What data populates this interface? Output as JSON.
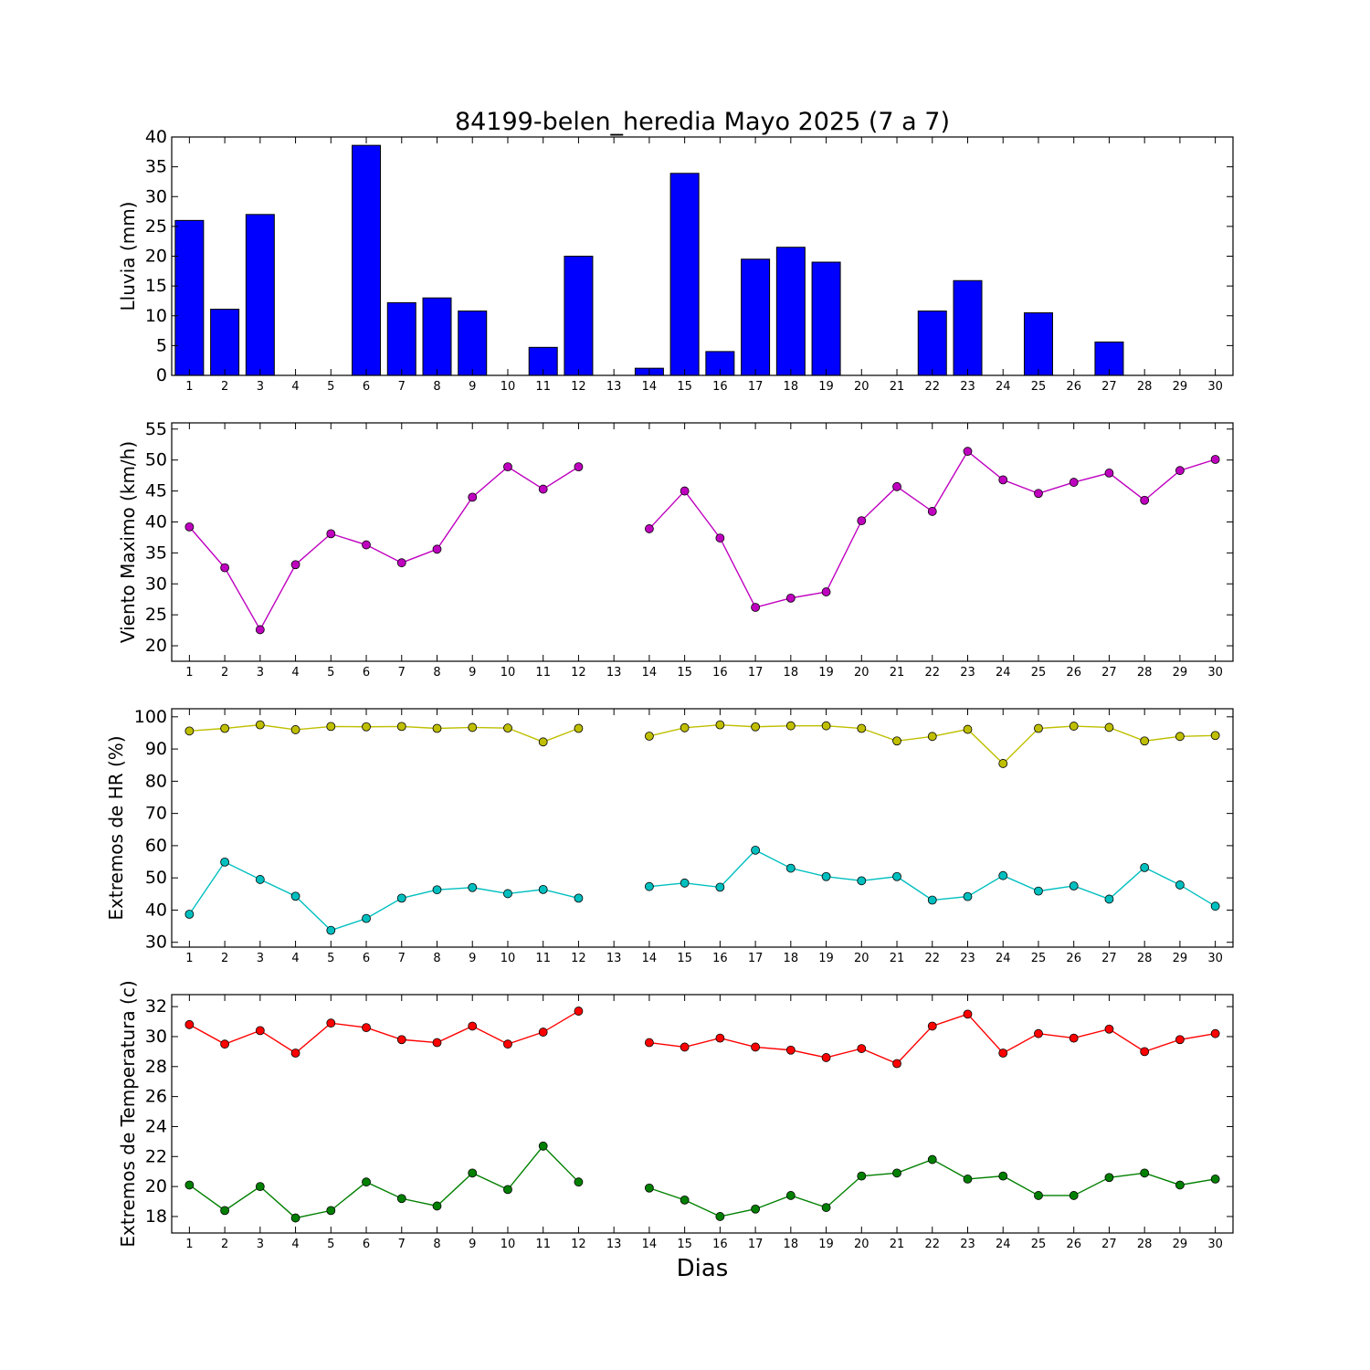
{
  "title": "84199-belen_heredia Mayo 2025  (7 a 7)",
  "xlabel": "Dias",
  "chart_data": [
    {
      "id": "lluvia",
      "type": "bar",
      "ylabel": "Lluvia (mm)",
      "ylim": [
        0,
        40
      ],
      "yticks": [
        0,
        5,
        10,
        15,
        20,
        25,
        30,
        35,
        40
      ],
      "xlim": [
        0.5,
        30.5
      ],
      "categories": [
        1,
        2,
        3,
        4,
        5,
        6,
        7,
        8,
        9,
        10,
        11,
        12,
        13,
        14,
        15,
        16,
        17,
        18,
        19,
        20,
        21,
        22,
        23,
        24,
        25,
        26,
        27,
        28,
        29,
        30
      ],
      "series": [
        {
          "color": "#0000ff",
          "values": [
            26.0,
            11.1,
            27.0,
            0,
            0,
            38.6,
            12.2,
            13.0,
            10.8,
            0,
            4.7,
            20.0,
            null,
            1.2,
            33.9,
            4.0,
            19.5,
            21.5,
            19.0,
            0,
            0,
            10.8,
            15.9,
            0,
            10.5,
            0,
            5.6,
            0,
            0,
            0
          ]
        }
      ]
    },
    {
      "id": "viento",
      "type": "line",
      "ylabel": "Viento Maximo (km/h)",
      "ylim": [
        17.5,
        56
      ],
      "yticks": [
        20,
        25,
        30,
        35,
        40,
        45,
        50,
        55
      ],
      "xlim": [
        0.5,
        30.5
      ],
      "categories": [
        1,
        2,
        3,
        4,
        5,
        6,
        7,
        8,
        9,
        10,
        11,
        12,
        13,
        14,
        15,
        16,
        17,
        18,
        19,
        20,
        21,
        22,
        23,
        24,
        25,
        26,
        27,
        28,
        29,
        30
      ],
      "series": [
        {
          "color": "#bf00bf",
          "values": [
            39.2,
            32.6,
            22.6,
            33.1,
            38.1,
            36.3,
            33.4,
            35.6,
            44.0,
            48.9,
            45.3,
            48.9,
            null,
            38.9,
            45.0,
            37.4,
            26.2,
            27.7,
            28.7,
            40.2,
            45.7,
            41.7,
            51.4,
            46.8,
            44.6,
            46.4,
            47.9,
            43.5,
            48.3,
            50.1
          ]
        }
      ]
    },
    {
      "id": "hr",
      "type": "line",
      "ylabel": "Extremos de HR (%)",
      "ylim": [
        28.5,
        102.5
      ],
      "yticks": [
        30,
        40,
        50,
        60,
        70,
        80,
        90,
        100
      ],
      "xlim": [
        0.5,
        30.5
      ],
      "categories": [
        1,
        2,
        3,
        4,
        5,
        6,
        7,
        8,
        9,
        10,
        11,
        12,
        13,
        14,
        15,
        16,
        17,
        18,
        19,
        20,
        21,
        22,
        23,
        24,
        25,
        26,
        27,
        28,
        29,
        30
      ],
      "series": [
        {
          "color": "#bfbf00",
          "values": [
            95.6,
            96.4,
            97.5,
            96.0,
            97.0,
            96.9,
            97.0,
            96.4,
            96.7,
            96.5,
            92.2,
            96.4,
            null,
            94.0,
            96.6,
            97.5,
            96.9,
            97.2,
            97.2,
            96.4,
            92.5,
            93.9,
            96.1,
            85.5,
            96.4,
            97.1,
            96.7,
            92.5,
            93.9,
            94.2
          ]
        },
        {
          "color": "#00bfbf",
          "values": [
            38.7,
            54.9,
            49.5,
            44.3,
            33.7,
            37.4,
            43.7,
            46.3,
            47.0,
            45.1,
            46.4,
            43.7,
            null,
            47.3,
            48.4,
            47.1,
            58.6,
            53.0,
            50.4,
            49.1,
            50.4,
            43.1,
            44.2,
            50.7,
            45.9,
            47.5,
            43.4,
            53.2,
            47.8,
            41.2
          ]
        }
      ]
    },
    {
      "id": "temperatura",
      "type": "line",
      "ylabel": "Extremos de Temperatura (c)",
      "ylim": [
        16.9,
        32.8
      ],
      "yticks": [
        18,
        20,
        22,
        24,
        26,
        28,
        30,
        32
      ],
      "xlim": [
        0.5,
        30.5
      ],
      "categories": [
        1,
        2,
        3,
        4,
        5,
        6,
        7,
        8,
        9,
        10,
        11,
        12,
        13,
        14,
        15,
        16,
        17,
        18,
        19,
        20,
        21,
        22,
        23,
        24,
        25,
        26,
        27,
        28,
        29,
        30
      ],
      "series": [
        {
          "color": "#ff0000",
          "values": [
            30.8,
            29.5,
            30.4,
            28.9,
            30.9,
            30.6,
            29.8,
            29.6,
            30.7,
            29.5,
            30.3,
            31.7,
            null,
            29.6,
            29.3,
            29.9,
            29.3,
            29.1,
            28.6,
            29.2,
            28.2,
            30.7,
            31.5,
            28.9,
            30.2,
            29.9,
            30.5,
            29.0,
            29.8,
            30.2
          ]
        },
        {
          "color": "#008000",
          "values": [
            20.1,
            18.4,
            20.0,
            17.9,
            18.4,
            20.3,
            19.2,
            18.7,
            20.9,
            19.8,
            22.7,
            20.3,
            null,
            19.9,
            19.1,
            18.0,
            18.5,
            19.4,
            18.6,
            20.7,
            20.9,
            21.8,
            20.5,
            20.7,
            19.4,
            19.4,
            20.6,
            20.9,
            20.1,
            20.5
          ]
        }
      ]
    }
  ]
}
